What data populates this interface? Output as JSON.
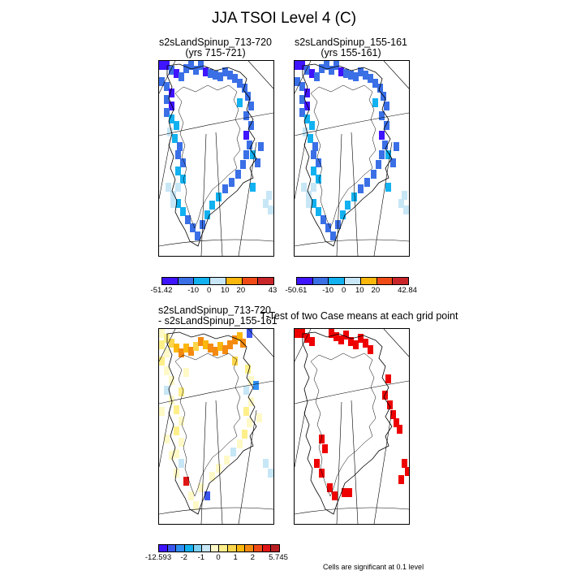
{
  "figure_title": "JJA TSOI Level 4 (C)",
  "colors": {
    "sig_red": "#ee0000",
    "land_line": "#000000"
  },
  "chart_data": [
    {
      "type": "heatmap",
      "title_line1": "s2sLandSpinup_713-720",
      "title_line2": "(yrs 715-721)",
      "colorbar": {
        "ticks": [
          "-51.42",
          "-10",
          "0",
          "10",
          "20",
          "43"
        ],
        "tick_positions": [
          0,
          2,
          3,
          4,
          5,
          7
        ],
        "colors": [
          "#3f14ff",
          "#3a6fe6",
          "#12b1f0",
          "#c7e6f6",
          "#fbb70c",
          "#f04b16",
          "#c9262a"
        ],
        "range": [
          -51.42,
          43
        ]
      }
    },
    {
      "type": "heatmap",
      "title_line1": "s2sLandSpinup_155-161",
      "title_line2": "(yrs 155-161)",
      "colorbar": {
        "ticks": [
          "-50.61",
          "-10",
          "0",
          "10",
          "20",
          "42.84"
        ],
        "tick_positions": [
          0,
          2,
          3,
          4,
          5,
          7
        ],
        "colors": [
          "#3f14ff",
          "#3a6fe6",
          "#12b1f0",
          "#c7e6f6",
          "#fbb70c",
          "#f04b16",
          "#c9262a"
        ],
        "range": [
          -50.61,
          42.84
        ]
      }
    },
    {
      "type": "heatmap",
      "title_line1": "s2sLandSpinup_713-720",
      "title_line2": "- s2sLandSpinup_155-161",
      "colorbar": {
        "ticks": [
          "-12.593",
          "-2",
          "-1",
          "0",
          "1",
          "2",
          "5.745"
        ],
        "tick_positions": [
          0,
          3,
          5,
          7,
          9,
          11,
          14
        ],
        "colors": [
          "#3f14ff",
          "#3a56ef",
          "#2f8ff2",
          "#12b1f0",
          "#7fd0f5",
          "#c7e6f6",
          "#fff9c7",
          "#ffef8a",
          "#fbd54a",
          "#fbb70c",
          "#f48a10",
          "#f04b16",
          "#e01515",
          "#b81e22"
        ],
        "range": [
          -12.593,
          5.745
        ]
      }
    },
    {
      "type": "heatmap",
      "title_line1": "T-Test of two Case means at each grid point",
      "footnote": "Cells are significant at 0.1 level"
    }
  ]
}
